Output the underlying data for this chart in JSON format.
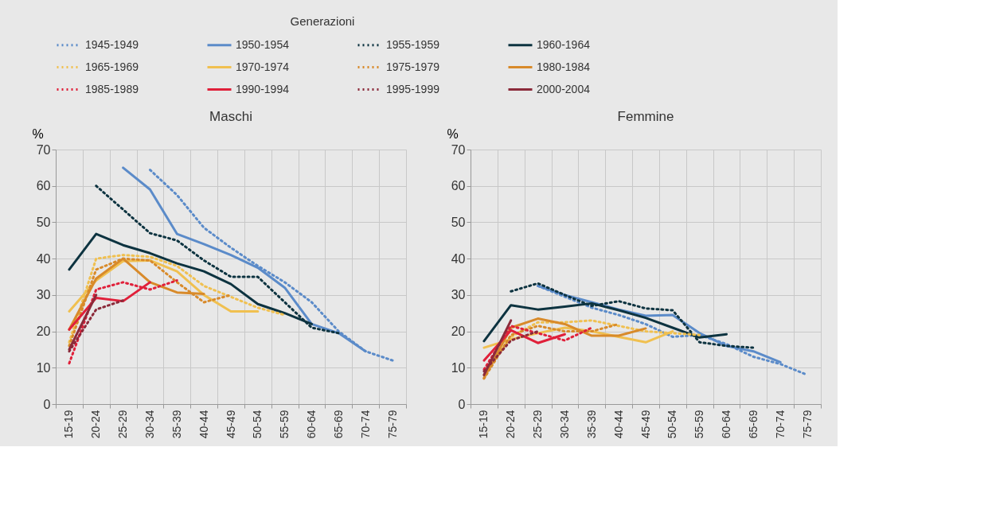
{
  "chart_data": [
    {
      "type": "line",
      "title": "Maschi",
      "ylabel": "%",
      "legend_title": "Generazioni",
      "legend": "top",
      "grid": true,
      "categories": [
        "15-19",
        "20-24",
        "25-29",
        "30-34",
        "35-39",
        "40-44",
        "45-49",
        "50-54",
        "55-59",
        "60-64",
        "65-69",
        "70-74",
        "75-79"
      ],
      "ylim": [
        0,
        70
      ],
      "yticks": [
        0,
        10,
        20,
        30,
        40,
        50,
        60,
        70
      ],
      "series": [
        {
          "name": "1945-1949",
          "color": "#5b8bc9",
          "line_style": "dotted",
          "values": [
            null,
            null,
            null,
            64.4,
            57.5,
            48.5,
            43,
            38,
            33.5,
            28,
            20,
            14.5,
            12
          ]
        },
        {
          "name": "1950-1954",
          "color": "#5b8bc9",
          "line_style": "solid",
          "values": [
            null,
            null,
            65,
            59,
            46.8,
            44,
            41,
            37.5,
            32,
            22,
            19.5,
            14.5,
            null
          ]
        },
        {
          "name": "1955-1959",
          "color": "#0d3340",
          "line_style": "dotted",
          "values": [
            null,
            60,
            53.5,
            47,
            45,
            39.5,
            35,
            35,
            28,
            21,
            19.5,
            null,
            null
          ]
        },
        {
          "name": "1960-1964",
          "color": "#0d3340",
          "line_style": "solid",
          "values": [
            37,
            46.8,
            43.7,
            41.5,
            38.7,
            36.5,
            33,
            27.5,
            25,
            22,
            null,
            null,
            null
          ]
        },
        {
          "name": "1965-1969",
          "color": "#f0c050",
          "line_style": "dotted",
          "values": [
            17,
            40,
            41,
            40.5,
            38,
            32.5,
            29.5,
            26.5,
            24.5,
            null,
            null,
            null,
            null
          ]
        },
        {
          "name": "1970-1974",
          "color": "#f0c050",
          "line_style": "solid",
          "values": [
            25.5,
            34,
            39.3,
            39.5,
            36.5,
            30,
            25.5,
            25.5,
            null,
            null,
            null,
            null,
            null
          ]
        },
        {
          "name": "1975-1979",
          "color": "#d88a2a",
          "line_style": "dotted",
          "values": [
            16,
            37,
            40,
            39.5,
            33.5,
            28,
            30,
            null,
            null,
            null,
            null,
            null,
            null
          ]
        },
        {
          "name": "1980-1984",
          "color": "#d88a2a",
          "line_style": "solid",
          "values": [
            20.5,
            34.5,
            40,
            33.5,
            30.7,
            30.3,
            null,
            null,
            null,
            null,
            null,
            null,
            null
          ]
        },
        {
          "name": "1985-1989",
          "color": "#e0203a",
          "line_style": "dotted",
          "values": [
            11.2,
            31.5,
            33.5,
            31.5,
            34,
            null,
            null,
            null,
            null,
            null,
            null,
            null,
            null
          ]
        },
        {
          "name": "1990-1994",
          "color": "#e0203a",
          "line_style": "solid",
          "values": [
            20.5,
            29.2,
            28.3,
            33.5,
            null,
            null,
            null,
            null,
            null,
            null,
            null,
            null,
            null
          ]
        },
        {
          "name": "1995-1999",
          "color": "#8b2a3a",
          "line_style": "dotted",
          "values": [
            14.5,
            26,
            28.5,
            null,
            null,
            null,
            null,
            null,
            null,
            null,
            null,
            null,
            null
          ]
        },
        {
          "name": "2000-2004",
          "color": "#8b2a3a",
          "line_style": "solid",
          "values": [
            15,
            30,
            null,
            null,
            null,
            null,
            null,
            null,
            null,
            null,
            null,
            null,
            null
          ]
        }
      ]
    },
    {
      "type": "line",
      "title": "Femmine",
      "ylabel": "%",
      "legend": false,
      "grid": true,
      "categories": [
        "15-19",
        "20-24",
        "25-29",
        "30-34",
        "35-39",
        "40-44",
        "45-49",
        "50-54",
        "55-59",
        "60-64",
        "65-69",
        "70-74",
        "75-79"
      ],
      "ylim": [
        0,
        70
      ],
      "yticks": [
        0,
        10,
        20,
        30,
        40,
        50,
        60,
        70
      ],
      "series": [
        {
          "name": "1945-1949",
          "color": "#5b8bc9",
          "line_style": "dotted",
          "values": [
            null,
            null,
            32.5,
            29.5,
            26.5,
            24.5,
            22,
            18.5,
            19,
            16.5,
            13,
            11,
            8
          ]
        },
        {
          "name": "1950-1954",
          "color": "#5b8bc9",
          "line_style": "solid",
          "values": [
            null,
            null,
            32.5,
            30,
            28,
            26,
            24.3,
            24.5,
            19.5,
            16,
            14.5,
            11.5,
            null
          ]
        },
        {
          "name": "1955-1959",
          "color": "#0d3340",
          "line_style": "dotted",
          "values": [
            null,
            31,
            33.2,
            30,
            27,
            28.3,
            26.3,
            25.8,
            17,
            16,
            15.5,
            null,
            null
          ]
        },
        {
          "name": "1960-1964",
          "color": "#0d3340",
          "line_style": "solid",
          "values": [
            17.3,
            27.2,
            26,
            26.8,
            27.7,
            25.8,
            23.7,
            21,
            18.3,
            19.2,
            null,
            null,
            null
          ]
        },
        {
          "name": "1965-1969",
          "color": "#f0c050",
          "line_style": "dotted",
          "values": [
            8,
            18.5,
            22.5,
            22.5,
            23,
            21.5,
            20,
            19.5,
            19,
            null,
            null,
            null,
            null
          ]
        },
        {
          "name": "1970-1974",
          "color": "#f0c050",
          "line_style": "solid",
          "values": [
            15.5,
            17.8,
            19.5,
            21,
            20,
            18.5,
            17,
            20,
            null,
            null,
            null,
            null,
            null
          ]
        },
        {
          "name": "1975-1979",
          "color": "#d88a2a",
          "line_style": "dotted",
          "values": [
            7,
            19,
            21.5,
            20,
            20,
            22,
            null,
            null,
            null,
            null,
            null,
            null,
            null
          ]
        },
        {
          "name": "1980-1984",
          "color": "#d88a2a",
          "line_style": "solid",
          "values": [
            7.2,
            21,
            23.5,
            22,
            18.8,
            18.8,
            20.8,
            null,
            null,
            null,
            null,
            null,
            null
          ]
        },
        {
          "name": "1985-1989",
          "color": "#e0203a",
          "line_style": "dotted",
          "values": [
            9.5,
            21.5,
            19.5,
            17.5,
            21,
            null,
            null,
            null,
            null,
            null,
            null,
            null,
            null
          ]
        },
        {
          "name": "1990-1994",
          "color": "#e0203a",
          "line_style": "solid",
          "values": [
            12,
            20.3,
            16.8,
            19.2,
            null,
            null,
            null,
            null,
            null,
            null,
            null,
            null,
            null
          ]
        },
        {
          "name": "1995-1999",
          "color": "#8b2a3a",
          "line_style": "dotted",
          "values": [
            9,
            17.5,
            20,
            null,
            null,
            null,
            null,
            null,
            null,
            null,
            null,
            null,
            null
          ]
        },
        {
          "name": "2000-2004",
          "color": "#8b2a3a",
          "line_style": "solid",
          "values": [
            8,
            23,
            null,
            null,
            null,
            null,
            null,
            null,
            null,
            null,
            null,
            null,
            null
          ]
        }
      ]
    }
  ]
}
